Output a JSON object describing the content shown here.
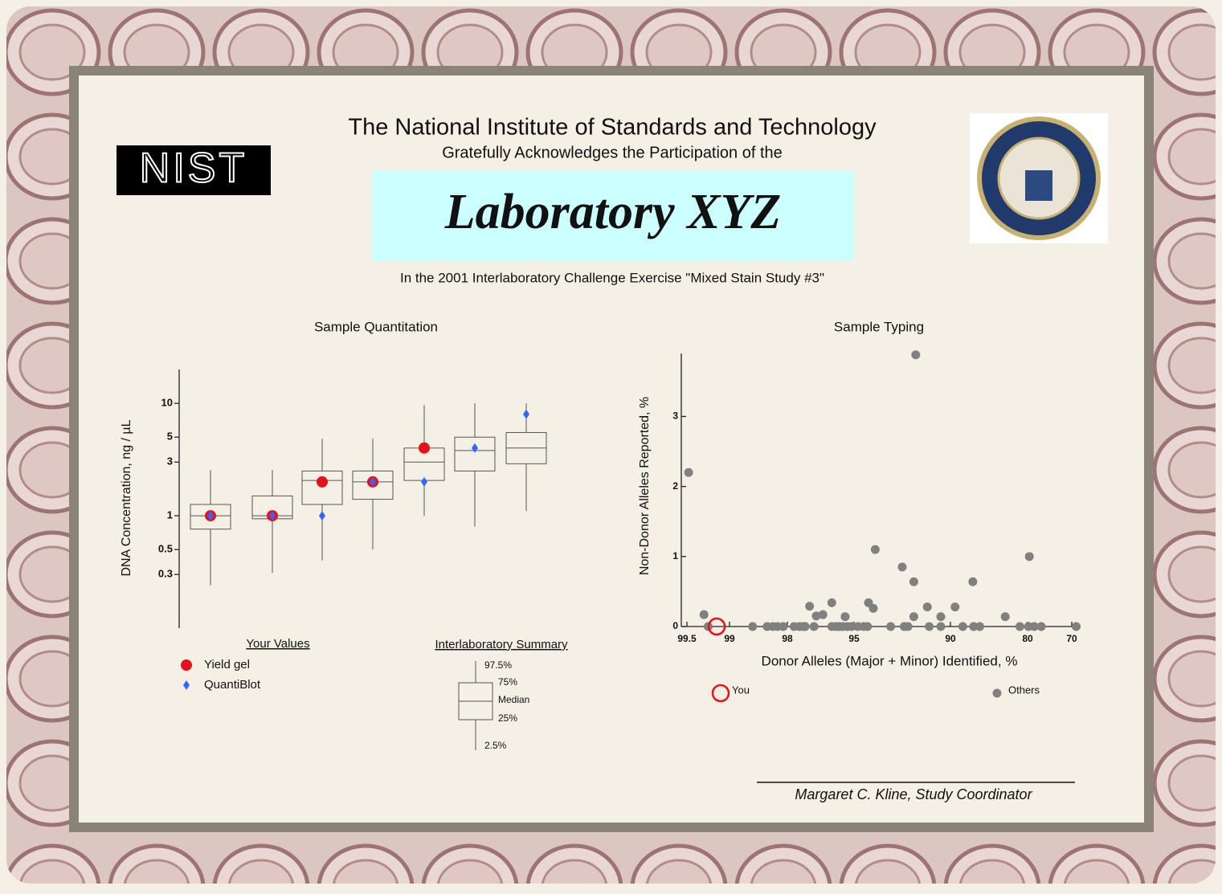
{
  "header": {
    "logo": "NIST",
    "title": "The National Institute of Standards and Technology",
    "subtitle": "Gratefully Acknowledges the Participation of the",
    "laboratory": "Laboratory XYZ",
    "exercise": "In the 2001 Interlaboratory Challenge Exercise \"Mixed Stain Study #3\""
  },
  "chart_data": [
    {
      "type": "box",
      "title": "Sample Quantitation",
      "ylabel": "DNA Concentration, ng / µL",
      "log_y": true,
      "ylim": [
        0.1,
        20
      ],
      "yticks": [
        0.3,
        0.5,
        1,
        3,
        5,
        10
      ],
      "categories": [
        null,
        null,
        null,
        null,
        null,
        null,
        null
      ],
      "boxes": {
        "whislo": [
          0.24,
          0.31,
          0.4,
          0.5,
          1.0,
          0.8,
          1.1
        ],
        "q1": [
          0.76,
          0.94,
          1.26,
          1.4,
          2.06,
          2.5,
          2.9
        ],
        "median": [
          1.0,
          1.0,
          2.06,
          2.0,
          3.0,
          3.8,
          4.0
        ],
        "q3": [
          1.26,
          1.5,
          2.5,
          2.5,
          4.0,
          5.0,
          5.5
        ],
        "whishi": [
          2.55,
          2.55,
          4.85,
          4.85,
          9.6,
          10,
          10
        ]
      },
      "series": [
        {
          "name": "Yield gel",
          "color": "#e8101a",
          "values": [
            1.0,
            1.0,
            2.0,
            2.0,
            4.0,
            null,
            null
          ]
        },
        {
          "name": "QuantiBlot",
          "color": "#3366ff",
          "values": [
            1.0,
            1.0,
            1.0,
            2.0,
            2.0,
            4.0,
            8.0
          ]
        }
      ],
      "legend_title": "Your Values",
      "summary_title": "Interlaboratory Summary",
      "summary_labels": [
        "97.5%",
        "75%",
        "Median",
        "25%",
        "2.5%"
      ]
    },
    {
      "type": "scatter",
      "title": "Sample Typing",
      "xlabel": "Donor Alleles (Major + Minor) Identified, %",
      "ylabel": "Non-Donor Alleles Reported, %",
      "xlim": [
        99.6,
        69
      ],
      "xticks": [
        99.5,
        99,
        98,
        95,
        90,
        80,
        70
      ],
      "ylim": [
        0,
        3.9
      ],
      "yticks": [
        0,
        1,
        2,
        3
      ],
      "series": [
        {
          "name": "You",
          "color": "#e8101a",
          "x": [
            99.15
          ],
          "values": [
            0
          ]
        },
        {
          "name": "Others",
          "color": "#808080",
          "x": [
            99.48,
            99.3,
            99.25,
            97.0,
            96.7,
            96.4,
            96.0,
            95.4,
            94.25,
            94.0,
            93.9,
            92.5,
            91.9,
            91.8,
            91.9,
            91.2,
            90.5,
            89.4,
            87.1,
            82.9,
            79.6,
            98.6,
            98.35,
            98.25,
            98.17,
            98.07,
            97.7,
            97.46,
            97.3,
            97.2,
            96.8,
            96.0,
            95.8,
            95.65,
            95.5,
            95.3,
            95.1,
            94.8,
            94.5,
            94.3,
            93.1,
            92.4,
            92.2,
            91.1,
            90.5,
            88.4,
            87.0,
            86.2,
            81.0,
            79.8,
            78.5,
            76.9,
            69.5
          ],
          "values": [
            2.2,
            0.17,
            0,
            0.29,
            0.15,
            0.17,
            0.34,
            0.14,
            0.34,
            0.26,
            1.1,
            0.85,
            0.64,
            3.88,
            0.14,
            0.28,
            0.14,
            0.28,
            0.64,
            0.14,
            1.0,
            0,
            0,
            0,
            0,
            0,
            0,
            0,
            0,
            0,
            0,
            0,
            0,
            0,
            0,
            0,
            0,
            0,
            0,
            0,
            0,
            0,
            0,
            0,
            0,
            0,
            0,
            0,
            0,
            0,
            0,
            0,
            0
          ]
        }
      ]
    }
  ],
  "signature": "Margaret C. Kline, Study Coordinator"
}
